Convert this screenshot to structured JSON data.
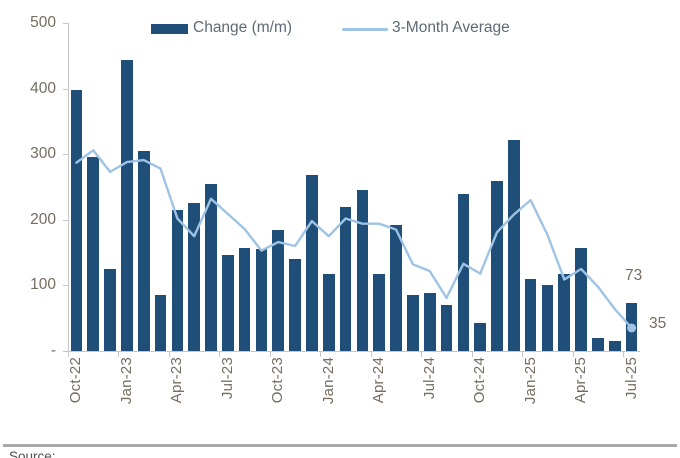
{
  "chart_data": {
    "type": "bar",
    "title": "",
    "categories": [
      "Oct-22",
      "Nov-22",
      "Dec-22",
      "Jan-23",
      "Feb-23",
      "Mar-23",
      "Apr-23",
      "May-23",
      "Jun-23",
      "Jul-23",
      "Aug-23",
      "Sep-23",
      "Oct-23",
      "Nov-23",
      "Dec-23",
      "Jan-24",
      "Feb-24",
      "Mar-24",
      "Apr-24",
      "May-24",
      "Jun-24",
      "Jul-24",
      "Aug-24",
      "Sep-24",
      "Oct-24",
      "Nov-24",
      "Dec-24",
      "Jan-25",
      "Feb-25",
      "Mar-25",
      "Apr-25",
      "May-25",
      "Jun-25",
      "Jul-25"
    ],
    "series": [
      {
        "name": "Change (m/m)",
        "type": "bar",
        "color": "#1F4E79",
        "values": [
          398,
          295,
          125,
          443,
          305,
          85,
          215,
          225,
          255,
          147,
          157,
          155,
          185,
          140,
          268,
          118,
          220,
          245,
          117,
          192,
          86,
          88,
          70,
          240,
          43,
          259,
          322,
          110,
          100,
          118,
          157,
          20,
          15,
          73
        ]
      },
      {
        "name": "3-Month Average",
        "type": "line",
        "color": "#9EC3E5",
        "values": [
          287,
          306,
          273,
          288,
          291,
          278,
          202,
          175,
          232,
          209,
          186,
          153,
          166,
          160,
          198,
          175,
          202,
          194,
          194,
          185,
          132,
          122,
          81,
          133,
          118,
          181,
          208,
          230,
          177,
          109,
          125,
          98,
          64,
          35
        ]
      }
    ],
    "ylim": [
      0,
      500
    ],
    "yticks": [
      500,
      400,
      300,
      200,
      100,
      0
    ],
    "ytick_labels": [
      "500",
      "400",
      "300",
      "200",
      "100",
      "-"
    ],
    "x_tick_labels": [
      "Oct-22",
      "Jan-23",
      "Apr-23",
      "Jul-23",
      "Oct-23",
      "Jan-24",
      "Apr-24",
      "Jul-24",
      "Oct-24",
      "Jan-25",
      "Apr-25",
      "Jul-25"
    ],
    "x_tick_indices": [
      0,
      3,
      6,
      9,
      12,
      15,
      18,
      21,
      24,
      27,
      30,
      33
    ],
    "legend_position": "top",
    "grid": false,
    "last_point_marker": true,
    "annotations": [
      {
        "text": "73",
        "series": "Change (m/m)",
        "category": "Jul-25",
        "value": 73
      },
      {
        "text": "35",
        "series": "3-Month Average",
        "category": "Jul-25",
        "value": 35
      }
    ]
  },
  "footer": {
    "source_text": "Source:"
  },
  "colors": {
    "bar": "#1F4E79",
    "line": "#9EC3E5",
    "axis": "#C6C6C6",
    "axis_text": "#756D60",
    "legend_text": "#5E6B77",
    "annotation_text": "#756D60",
    "divider": "#A8A8A8",
    "footer_text": "#4F4F4F",
    "background": "#FFFFFF"
  }
}
